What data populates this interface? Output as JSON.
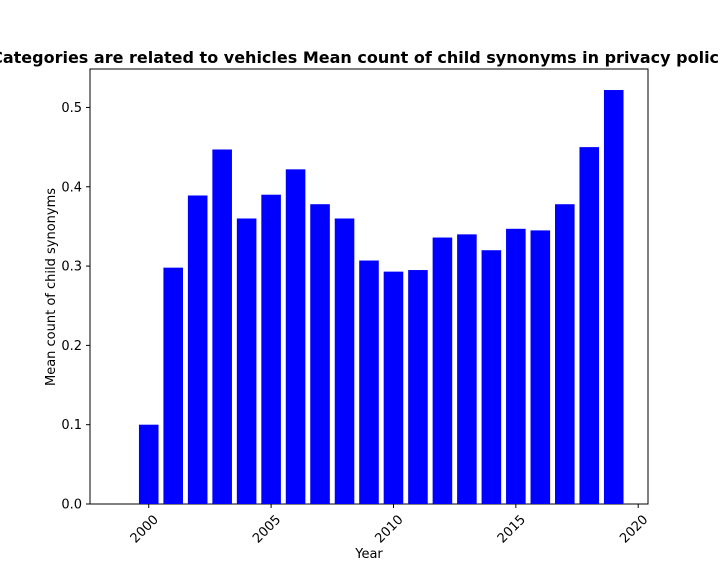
{
  "chart_data": {
    "type": "bar",
    "title": "Categories are related to vehicles Mean count of child synonyms in privacy policies",
    "xlabel": "Year",
    "ylabel": "Mean count of child synonyms",
    "x": [
      2000,
      2001,
      2002,
      2003,
      2004,
      2005,
      2006,
      2007,
      2008,
      2009,
      2010,
      2011,
      2012,
      2013,
      2014,
      2015,
      2016,
      2017,
      2018,
      2019
    ],
    "values": [
      0.1,
      0.298,
      0.389,
      0.447,
      0.36,
      0.39,
      0.422,
      0.378,
      0.36,
      0.307,
      0.293,
      0.295,
      0.336,
      0.34,
      0.32,
      0.347,
      0.345,
      0.378,
      0.45,
      0.522
    ],
    "xlim": [
      1997.6,
      2020.4
    ],
    "ylim": [
      0,
      0.5485
    ],
    "xticks": [
      2000,
      2005,
      2010,
      2015,
      2020
    ],
    "yticks": [
      0.0,
      0.1,
      0.2,
      0.3,
      0.4,
      0.5
    ],
    "ytick_labels": [
      "0.0",
      "0.1",
      "0.2",
      "0.3",
      "0.4",
      "0.5"
    ],
    "bar_color": "#0000ff",
    "grid": false,
    "legend": "none"
  }
}
